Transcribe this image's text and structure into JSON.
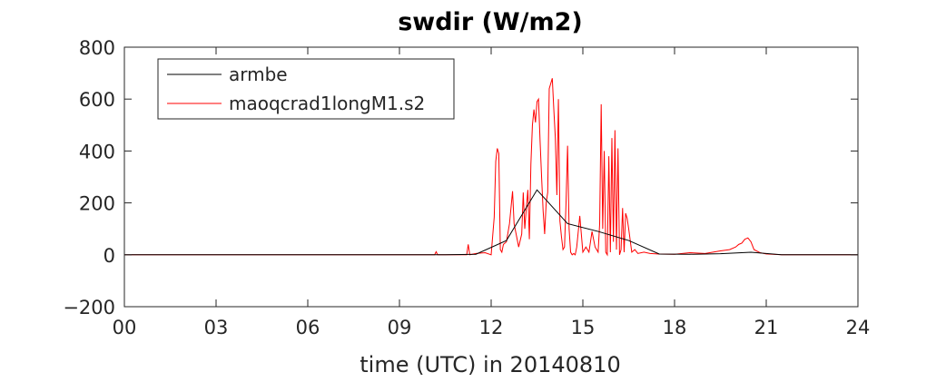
{
  "chart_data": {
    "type": "line",
    "title": "swdir  (W/m2)",
    "xlabel": "time (UTC) in 20140810",
    "ylabel": "",
    "xlim": [
      0,
      24
    ],
    "ylim": [
      -200,
      800
    ],
    "x_ticks": [
      0,
      3,
      6,
      9,
      12,
      15,
      18,
      21,
      24
    ],
    "x_tick_labels": [
      "00",
      "03",
      "06",
      "09",
      "12",
      "15",
      "18",
      "21",
      "24"
    ],
    "y_ticks": [
      -200,
      0,
      200,
      400,
      600,
      800
    ],
    "y_tick_labels": [
      "−200",
      "0",
      "200",
      "400",
      "600",
      "800"
    ],
    "grid": false,
    "legend_position": "top-left",
    "series": [
      {
        "name": "armbe",
        "color": "#000000",
        "x": [
          0,
          10.5,
          11.5,
          12.5,
          13.5,
          14.5,
          15.5,
          16.5,
          17.5,
          18.5,
          19.5,
          20.5,
          21.5,
          24
        ],
        "y": [
          0,
          0,
          2,
          55,
          250,
          120,
          90,
          55,
          3,
          2,
          4,
          10,
          0,
          0
        ]
      },
      {
        "name": "maoqcrad1longM1.s2",
        "color": "#ff0000",
        "x": [
          0,
          10.15,
          10.2,
          10.25,
          10.3,
          11.2,
          11.25,
          11.3,
          11.5,
          11.8,
          12.0,
          12.1,
          12.15,
          12.2,
          12.25,
          12.3,
          12.35,
          12.4,
          12.5,
          12.6,
          12.7,
          12.75,
          12.8,
          12.85,
          12.9,
          13.0,
          13.05,
          13.1,
          13.15,
          13.2,
          13.25,
          13.3,
          13.35,
          13.4,
          13.45,
          13.5,
          13.55,
          13.6,
          13.65,
          13.7,
          13.75,
          13.8,
          13.85,
          13.9,
          13.95,
          14.0,
          14.05,
          14.1,
          14.15,
          14.2,
          14.25,
          14.3,
          14.35,
          14.4,
          14.45,
          14.5,
          14.55,
          14.6,
          14.65,
          14.7,
          14.75,
          14.8,
          14.9,
          15.0,
          15.1,
          15.2,
          15.3,
          15.4,
          15.5,
          15.55,
          15.6,
          15.65,
          15.7,
          15.75,
          15.8,
          15.85,
          15.9,
          15.95,
          16.0,
          16.05,
          16.1,
          16.15,
          16.2,
          16.25,
          16.3,
          16.35,
          16.4,
          16.45,
          16.5,
          16.6,
          16.7,
          16.8,
          17.0,
          17.2,
          17.5,
          18.0,
          18.5,
          19.0,
          19.5,
          19.8,
          20.0,
          20.1,
          20.2,
          20.3,
          20.4,
          20.5,
          20.6,
          20.8,
          21.0,
          21.5,
          24
        ],
        "y": [
          0,
          0,
          12,
          0,
          0,
          0,
          40,
          0,
          5,
          8,
          0,
          145,
          360,
          410,
          390,
          20,
          10,
          40,
          50,
          120,
          245,
          120,
          90,
          60,
          30,
          80,
          240,
          100,
          180,
          250,
          60,
          350,
          500,
          560,
          510,
          590,
          600,
          440,
          300,
          170,
          80,
          200,
          240,
          640,
          660,
          680,
          560,
          450,
          230,
          600,
          130,
          70,
          20,
          30,
          200,
          420,
          100,
          10,
          0,
          5,
          0,
          30,
          150,
          10,
          30,
          10,
          90,
          30,
          10,
          120,
          580,
          100,
          400,
          10,
          0,
          380,
          10,
          450,
          50,
          480,
          20,
          410,
          0,
          20,
          180,
          10,
          160,
          140,
          100,
          10,
          20,
          5,
          10,
          5,
          3,
          2,
          8,
          5,
          15,
          20,
          30,
          40,
          45,
          60,
          65,
          50,
          20,
          8,
          3,
          0,
          0
        ]
      }
    ]
  }
}
